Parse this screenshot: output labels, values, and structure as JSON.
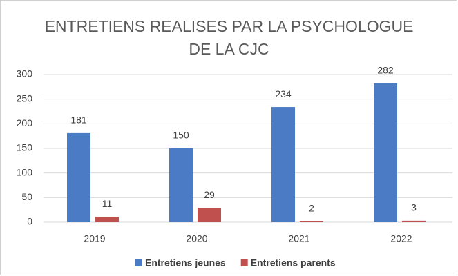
{
  "chart_data": {
    "type": "bar",
    "title": "ENTRETIENS REALISES PAR LA PSYCHOLOGUE DE LA CJC",
    "categories": [
      "2019",
      "2020",
      "2021",
      "2022"
    ],
    "series": [
      {
        "name": "Entretiens jeunes",
        "color": "#4a7bc4",
        "values": [
          181,
          150,
          234,
          282
        ]
      },
      {
        "name": "Entretiens parents",
        "color": "#c0504d",
        "values": [
          11,
          29,
          2,
          3
        ]
      }
    ],
    "ylim": [
      0,
      300
    ],
    "yticks": [
      0,
      50,
      100,
      150,
      200,
      250,
      300
    ],
    "grid": true,
    "legend": "bottom"
  }
}
